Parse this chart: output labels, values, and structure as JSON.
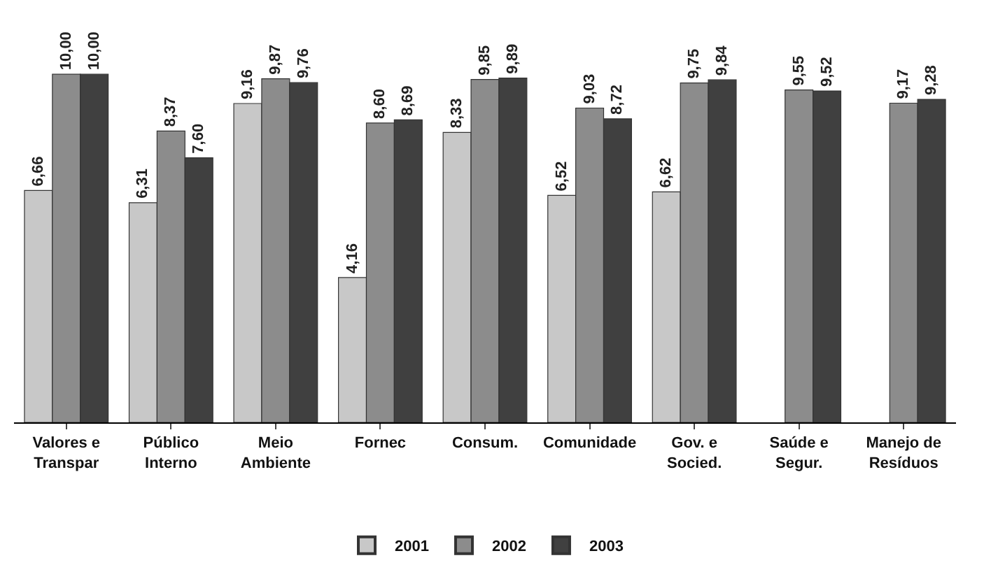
{
  "chart_data": {
    "type": "bar",
    "categories": [
      "Valores e\nTranspar",
      "Público\nInterno",
      "Meio\nAmbiente",
      "Fornec",
      "Consum.",
      "Comunidade",
      "Gov. e\nSocied.",
      "Saúde e\nSegur.",
      "Manejo de\nResíduos"
    ],
    "series": [
      {
        "name": "2001",
        "color": "#c8c8c8",
        "values": [
          6.66,
          6.31,
          9.16,
          4.16,
          8.33,
          6.52,
          6.62,
          null,
          null
        ],
        "value_labels": [
          "6,66",
          "6,31",
          "9,16",
          "4,16",
          "8,33",
          "6,52",
          "6,62",
          null,
          null
        ]
      },
      {
        "name": "2002",
        "color": "#8c8c8c",
        "values": [
          10.0,
          8.37,
          9.87,
          8.6,
          9.85,
          9.03,
          9.75,
          9.55,
          9.17
        ],
        "value_labels": [
          "10,00",
          "8,37",
          "9,87",
          "8,60",
          "9,85",
          "9,03",
          "9,75",
          "9,55",
          "9,17"
        ]
      },
      {
        "name": "2003",
        "color": "#404040",
        "values": [
          10.0,
          7.6,
          9.76,
          8.69,
          9.89,
          8.72,
          9.84,
          9.52,
          9.28
        ],
        "value_labels": [
          "10,00",
          "7,60",
          "9,76",
          "8,69",
          "9,89",
          "8,72",
          "9,84",
          "9,52",
          "9,28"
        ]
      }
    ],
    "legend": "bottom"
  }
}
